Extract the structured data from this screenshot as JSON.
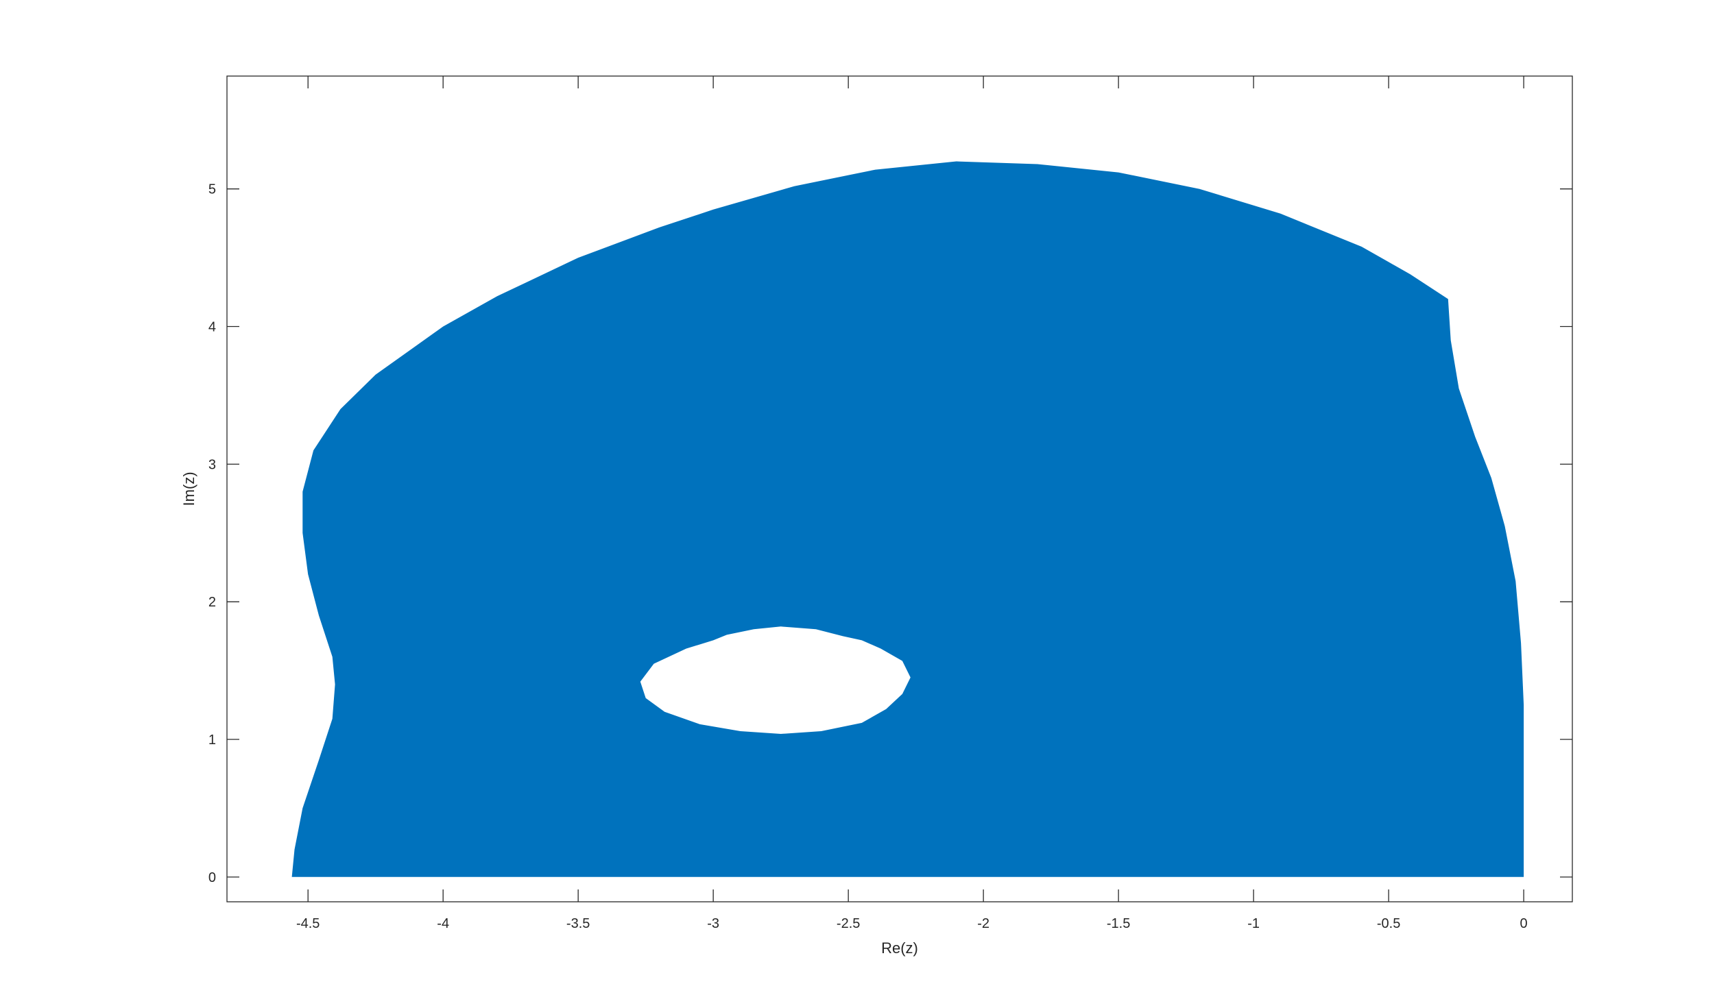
{
  "chart_data": {
    "type": "area",
    "title": "",
    "xlabel": "Re(z)",
    "ylabel": "Im(z)",
    "xlim": [
      -4.8,
      0.18
    ],
    "ylim": [
      -0.18,
      5.82
    ],
    "xticks": [
      -4.5,
      -4,
      -3.5,
      -3,
      -2.5,
      -2,
      -1.5,
      -1,
      -0.5,
      0
    ],
    "xtick_labels": [
      "-4.5",
      "-4",
      "-3.5",
      "-3",
      "-2.5",
      "-2",
      "-1.5",
      "-1",
      "-0.5",
      "0"
    ],
    "yticks": [
      0,
      1,
      2,
      3,
      4,
      5
    ],
    "ytick_labels": [
      "0",
      "1",
      "2",
      "3",
      "4",
      "5"
    ],
    "grid": false,
    "fill_color": "#0072BD",
    "region_outline": [
      [
        -4.56,
        0
      ],
      [
        -4.55,
        0.2
      ],
      [
        -4.52,
        0.5
      ],
      [
        -4.46,
        0.85
      ],
      [
        -4.41,
        1.15
      ],
      [
        -4.4,
        1.4
      ],
      [
        -4.41,
        1.6
      ],
      [
        -4.46,
        1.9
      ],
      [
        -4.5,
        2.2
      ],
      [
        -4.52,
        2.5
      ],
      [
        -4.52,
        2.8
      ],
      [
        -4.48,
        3.1
      ],
      [
        -4.38,
        3.4
      ],
      [
        -4.25,
        3.65
      ],
      [
        -4.0,
        4.0
      ],
      [
        -3.8,
        4.22
      ],
      [
        -3.5,
        4.5
      ],
      [
        -3.2,
        4.72
      ],
      [
        -3.0,
        4.85
      ],
      [
        -2.7,
        5.02
      ],
      [
        -2.4,
        5.14
      ],
      [
        -2.1,
        5.2
      ],
      [
        -1.8,
        5.18
      ],
      [
        -1.5,
        5.12
      ],
      [
        -1.2,
        5.0
      ],
      [
        -0.9,
        4.82
      ],
      [
        -0.6,
        4.58
      ],
      [
        -0.42,
        4.38
      ],
      [
        -0.28,
        4.2
      ],
      [
        -0.27,
        3.9
      ],
      [
        -0.24,
        3.55
      ],
      [
        -0.18,
        3.2
      ],
      [
        -0.12,
        2.9
      ],
      [
        -0.07,
        2.55
      ],
      [
        -0.03,
        2.15
      ],
      [
        -0.01,
        1.7
      ],
      [
        0,
        1.25
      ],
      [
        0,
        0
      ]
    ],
    "hole_outline": [
      [
        -3.27,
        1.42
      ],
      [
        -3.22,
        1.55
      ],
      [
        -3.1,
        1.66
      ],
      [
        -3.0,
        1.72
      ],
      [
        -2.95,
        1.76
      ],
      [
        -2.85,
        1.8
      ],
      [
        -2.75,
        1.82
      ],
      [
        -2.62,
        1.8
      ],
      [
        -2.52,
        1.75
      ],
      [
        -2.45,
        1.72
      ],
      [
        -2.38,
        1.66
      ],
      [
        -2.3,
        1.57
      ],
      [
        -2.27,
        1.45
      ],
      [
        -2.3,
        1.33
      ],
      [
        -2.36,
        1.22
      ],
      [
        -2.45,
        1.12
      ],
      [
        -2.6,
        1.06
      ],
      [
        -2.75,
        1.04
      ],
      [
        -2.9,
        1.06
      ],
      [
        -3.05,
        1.11
      ],
      [
        -3.18,
        1.2
      ],
      [
        -3.25,
        1.3
      ]
    ]
  }
}
